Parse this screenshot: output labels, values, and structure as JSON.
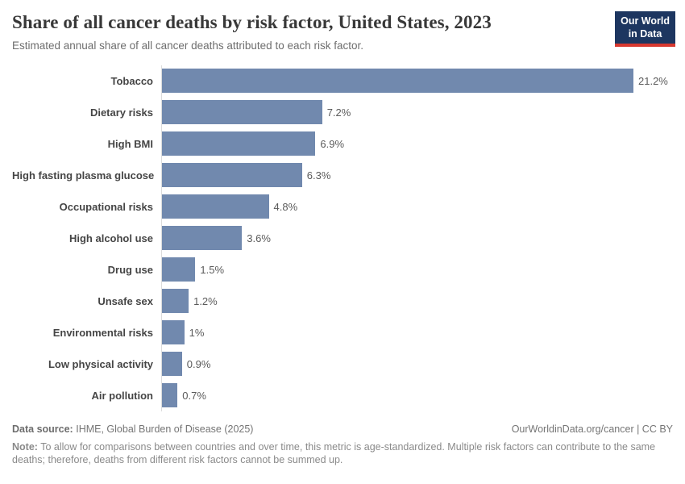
{
  "header": {
    "title": "Share of all cancer deaths by risk factor, United States, 2023",
    "subtitle": "Estimated annual share of all cancer deaths attributed to each risk factor.",
    "logo_line1": "Our World",
    "logo_line2": "in Data"
  },
  "chart_data": {
    "type": "bar",
    "orientation": "horizontal",
    "title": "Share of all cancer deaths by risk factor, United States, 2023",
    "subtitle": "Estimated annual share of all cancer deaths attributed to each risk factor.",
    "categories": [
      "Tobacco",
      "Dietary risks",
      "High BMI",
      "High fasting plasma glucose",
      "Occupational risks",
      "High alcohol use",
      "Drug use",
      "Unsafe sex",
      "Environmental risks",
      "Low physical activity",
      "Air pollution"
    ],
    "values": [
      21.2,
      7.2,
      6.9,
      6.3,
      4.8,
      3.6,
      1.5,
      1.2,
      1.0,
      0.9,
      0.7
    ],
    "value_labels": [
      "21.2%",
      "7.2%",
      "6.9%",
      "6.3%",
      "4.8%",
      "3.6%",
      "1.5%",
      "1.2%",
      "1%",
      "0.9%",
      "0.7%"
    ],
    "xlim": [
      0,
      21.2
    ],
    "xlabel": "",
    "ylabel": "",
    "grid": false,
    "legend": false
  },
  "colors": {
    "bar": "#7189ae",
    "logo_bg": "#1d3660",
    "logo_accent": "#d7382f",
    "title_text": "#383838",
    "subtitle_text": "#6e6e6e",
    "axis_line": "#dcdcdc"
  },
  "footer": {
    "data_source_label": "Data source:",
    "data_source_value": "IHME, Global Burden of Disease (2025)",
    "attribution": "OurWorldinData.org/cancer | CC BY",
    "note_label": "Note:",
    "note_text": "To allow for comparisons between countries and over time, this metric is age-standardized. Multiple risk factors can contribute to the same deaths; therefore, deaths from different risk factors cannot be summed up."
  }
}
